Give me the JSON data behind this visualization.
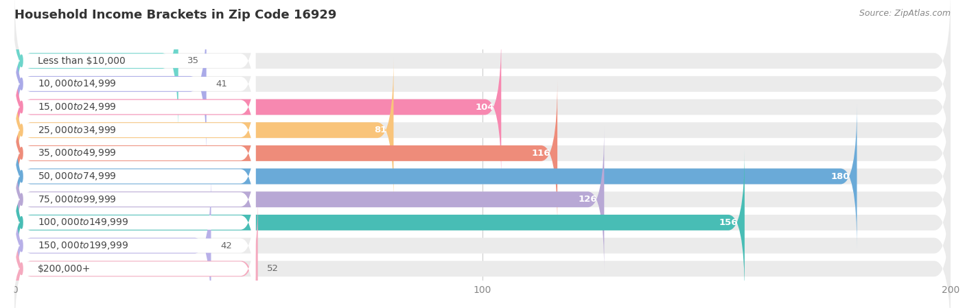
{
  "title": "Household Income Brackets in Zip Code 16929",
  "source": "Source: ZipAtlas.com",
  "categories": [
    "Less than $10,000",
    "$10,000 to $14,999",
    "$15,000 to $24,999",
    "$25,000 to $34,999",
    "$35,000 to $49,999",
    "$50,000 to $74,999",
    "$75,000 to $99,999",
    "$100,000 to $149,999",
    "$150,000 to $199,999",
    "$200,000+"
  ],
  "values": [
    35,
    41,
    104,
    81,
    116,
    180,
    126,
    156,
    42,
    52
  ],
  "bar_colors": [
    "#6DD5CB",
    "#AAAAE8",
    "#F788B0",
    "#F9C47A",
    "#EE8C7A",
    "#6AAAD8",
    "#B8A8D5",
    "#48BDB5",
    "#B8B0E8",
    "#F5AABF"
  ],
  "row_bg_color": "#EBEBEB",
  "pill_bg_color": "#FFFFFF",
  "label_color": "#444444",
  "value_color_inside": "#FFFFFF",
  "value_color_outside": "#666666",
  "title_color": "#333333",
  "source_color": "#888888",
  "grid_color": "#CCCCCC",
  "bg_color": "#FFFFFF",
  "xlim_min": 0,
  "xlim_max": 200,
  "xticks": [
    0,
    100,
    200
  ],
  "title_fontsize": 13,
  "label_fontsize": 10,
  "value_fontsize": 9.5,
  "source_fontsize": 9,
  "tick_fontsize": 10,
  "bar_height": 0.68,
  "value_threshold": 55
}
